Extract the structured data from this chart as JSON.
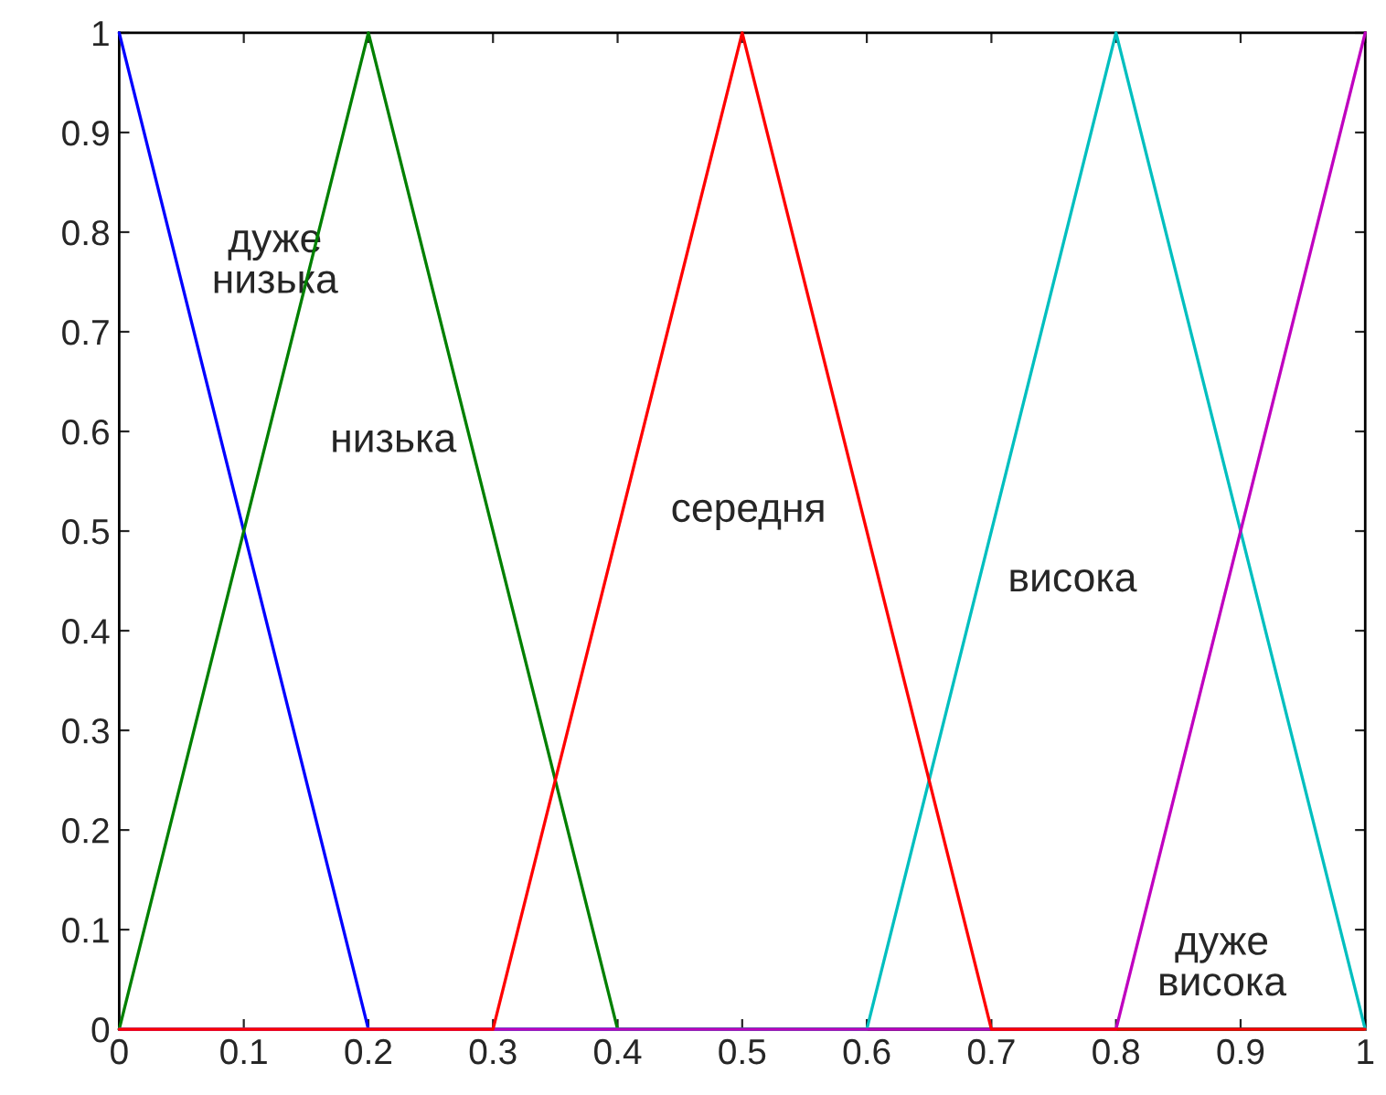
{
  "chart_data": {
    "type": "line",
    "xlim": [
      0,
      1
    ],
    "ylim": [
      0,
      1
    ],
    "xticks": [
      0,
      0.1,
      0.2,
      0.3,
      0.4,
      0.5,
      0.6,
      0.7,
      0.8,
      0.9,
      1
    ],
    "yticks": [
      0,
      0.1,
      0.2,
      0.3,
      0.4,
      0.5,
      0.6,
      0.7,
      0.8,
      0.9,
      1
    ],
    "grid": false,
    "legend": false,
    "marker": "none",
    "line_style": "solid",
    "series": [
      {
        "name": "дуже\nнизька",
        "color": "#0000ff",
        "x": [
          0,
          0.2,
          1
        ],
        "values": [
          1,
          0,
          0
        ]
      },
      {
        "name": "низька",
        "color": "#008000",
        "x": [
          0,
          0.2,
          0.4,
          1
        ],
        "values": [
          0,
          1,
          0,
          0
        ]
      },
      {
        "name": "висока",
        "color": "#00bfbf",
        "x": [
          0,
          0.6,
          0.8,
          1
        ],
        "values": [
          0,
          0,
          1,
          0
        ]
      },
      {
        "name": "дуже\nвисока",
        "color": "#bf00bf",
        "x": [
          0,
          0.8,
          1
        ],
        "values": [
          0,
          0,
          1
        ]
      },
      {
        "name": "середня",
        "color": "#ff0000",
        "x": [
          0,
          0.3,
          0.5,
          0.7,
          1
        ],
        "values": [
          0,
          0,
          1,
          0,
          0
        ]
      }
    ]
  }
}
